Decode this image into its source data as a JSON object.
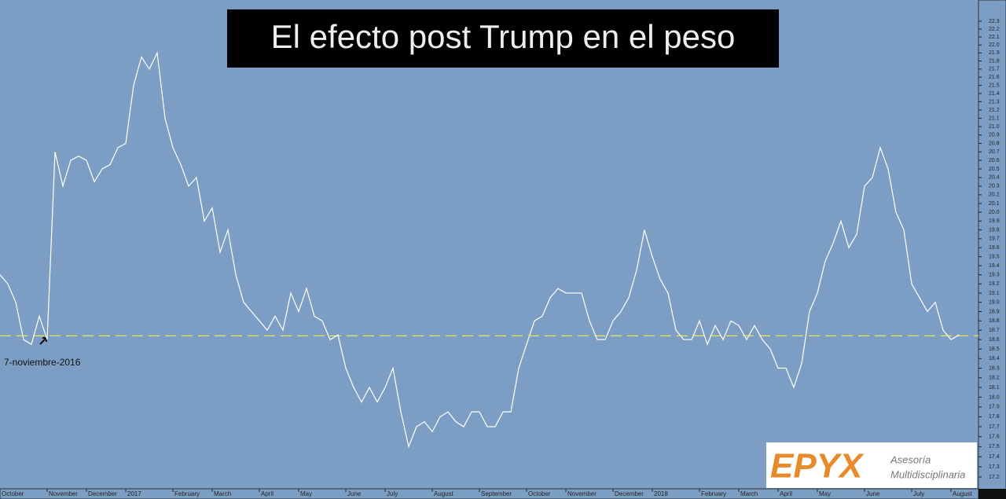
{
  "chart_data": {
    "type": "line",
    "title": "El efecto post Trump en el peso",
    "annotation": "7-noviembre-2016",
    "log_scale": true,
    "grid": false,
    "background": "#7d9ec4",
    "reference_line": {
      "value": 18.64,
      "color": "#e8e85a"
    },
    "categories": [
      "October",
      null,
      null,
      null,
      null,
      null,
      "November",
      null,
      null,
      null,
      null,
      "December",
      null,
      null,
      null,
      null,
      "2017",
      null,
      null,
      null,
      null,
      null,
      "February",
      null,
      null,
      null,
      null,
      "March",
      null,
      null,
      null,
      null,
      null,
      "April",
      null,
      null,
      null,
      null,
      "May",
      null,
      null,
      null,
      null,
      null,
      "June",
      null,
      null,
      null,
      null,
      "July",
      null,
      null,
      null,
      null,
      null,
      "August",
      null,
      null,
      null,
      null,
      null,
      "September",
      null,
      null,
      null,
      null,
      null,
      "October",
      null,
      null,
      null,
      null,
      "November",
      null,
      null,
      null,
      null,
      null,
      "December",
      null,
      null,
      null,
      null,
      "2018",
      null,
      null,
      null,
      null,
      null,
      "February",
      null,
      null,
      null,
      null,
      "March",
      null,
      null,
      null,
      null,
      "April",
      null,
      null,
      null,
      null,
      "May",
      null,
      null,
      null,
      null,
      null,
      "June",
      null,
      null,
      null,
      null,
      null,
      "July",
      null,
      null,
      null,
      null,
      "August",
      null
    ],
    "values": [
      19.3,
      19.2,
      19.0,
      18.6,
      18.55,
      18.85,
      18.6,
      20.7,
      20.3,
      20.6,
      20.65,
      20.6,
      20.35,
      20.5,
      20.55,
      20.75,
      20.8,
      21.5,
      21.85,
      21.7,
      21.9,
      21.1,
      20.75,
      20.55,
      20.3,
      20.4,
      19.9,
      20.05,
      19.55,
      19.8,
      19.3,
      19.0,
      18.9,
      18.8,
      18.7,
      18.85,
      18.7,
      19.1,
      18.9,
      19.15,
      18.85,
      18.8,
      18.6,
      18.65,
      18.3,
      18.1,
      17.95,
      18.1,
      17.95,
      18.1,
      18.3,
      17.85,
      17.5,
      17.7,
      17.75,
      17.65,
      17.8,
      17.85,
      17.75,
      17.7,
      17.85,
      17.85,
      17.7,
      17.7,
      17.85,
      17.85,
      18.3,
      18.55,
      18.8,
      18.85,
      19.05,
      19.15,
      19.1,
      19.1,
      19.1,
      18.8,
      18.6,
      18.6,
      18.8,
      18.9,
      19.05,
      19.35,
      19.8,
      19.5,
      19.25,
      19.1,
      18.7,
      18.6,
      18.6,
      18.8,
      18.55,
      18.75,
      18.6,
      18.8,
      18.75,
      18.6,
      18.75,
      18.6,
      18.5,
      18.3,
      18.3,
      18.1,
      18.35,
      18.9,
      19.1,
      19.45,
      19.65,
      19.9,
      19.6,
      19.75,
      20.3,
      20.4,
      20.75,
      20.5,
      20.0,
      19.8,
      19.2,
      19.05,
      18.9,
      19.0,
      18.7,
      18.6,
      18.65
    ],
    "color": "#ffffff",
    "ylim": [
      17.1,
      22.45
    ],
    "yticks": [
      17.2,
      17.3,
      17.4,
      17.5,
      17.6,
      17.7,
      17.8,
      17.9,
      {
        "value": 18,
        "label": "18.0"
      },
      18.1,
      18.2,
      18.3,
      18.4,
      18.5,
      18.6,
      18.7,
      18.8,
      18.9,
      {
        "value": 19,
        "label": "19.0"
      },
      19.1,
      19.2,
      19.3,
      19.4,
      19.5,
      19.6,
      19.7,
      19.8,
      19.9,
      {
        "value": 20,
        "label": "20.0"
      },
      20.1,
      20.2,
      20.3,
      20.4,
      20.5,
      20.6,
      20.7,
      20.8,
      20.9,
      {
        "value": 21,
        "label": "21.0"
      },
      21.1,
      21.2,
      21.3,
      21.4,
      21.5,
      21.6,
      21.7,
      21.8,
      21.9,
      {
        "value": 22,
        "label": "22.0"
      },
      22.1,
      22.2,
      22.3
    ]
  },
  "logo": {
    "brand": "EPYX",
    "line1": "Asesoría",
    "line2": "Multidisciplinaria"
  }
}
